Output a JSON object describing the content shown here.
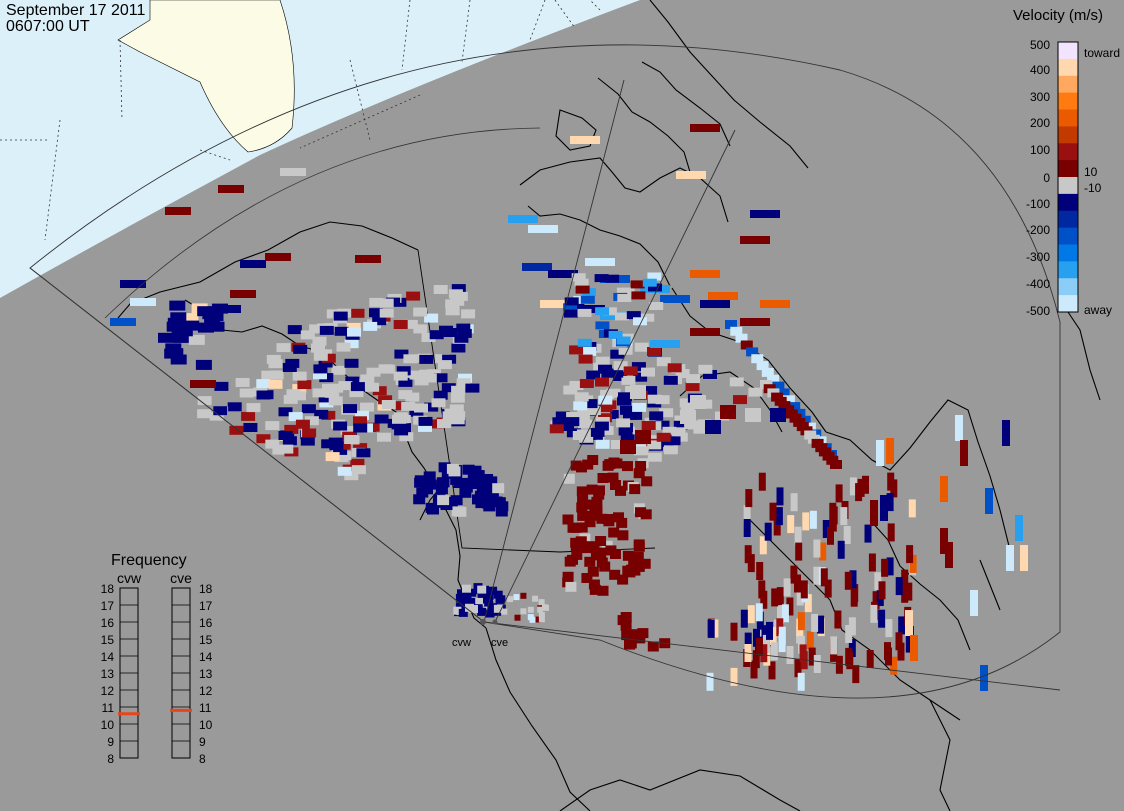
{
  "header": {
    "date": "September 17 2011",
    "time": "0607:00 UT"
  },
  "velocity_legend": {
    "title": "Velocity (m/s)",
    "ticks": [
      "500",
      "400",
      "300",
      "200",
      "100",
      "10",
      "0",
      "-10",
      "-100",
      "-200",
      "-300",
      "-400",
      "-500"
    ],
    "toward_label": "toward",
    "away_label": "away",
    "colors": [
      "#f2e4ff",
      "#ffd8b0",
      "#ffa860",
      "#ff7a10",
      "#ec5a00",
      "#c23a00",
      "#9a1010",
      "#780000",
      "#c8c8c8",
      "#00007a",
      "#0028a0",
      "#0050c8",
      "#0078e6",
      "#28a0f0",
      "#8ccdf8",
      "#cdeafd"
    ]
  },
  "frequency_legend": {
    "title": "Frequency",
    "stations": [
      {
        "name": "cvw",
        "value_mhz": 10.6
      },
      {
        "name": "cve",
        "value_mhz": 10.8
      }
    ],
    "ticks": [
      "18",
      "17",
      "16",
      "15",
      "14",
      "13",
      "12",
      "11",
      "10",
      "9",
      "8"
    ],
    "marker_color": "#e8461a"
  },
  "radars": [
    {
      "label": "cvw"
    },
    {
      "label": "cve"
    }
  ],
  "colors": {
    "ocean": "#9a9a9a",
    "daylight": "#dcf0fa",
    "land_day": "#fbfbe6",
    "ground_scatter": "#c8c8c8",
    "coast": "#000000"
  }
}
